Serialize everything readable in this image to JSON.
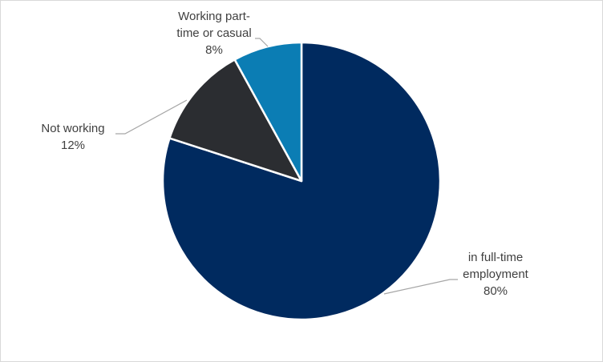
{
  "chart_data": {
    "type": "pie",
    "title": "",
    "slices": [
      {
        "label": "in full-time employment",
        "label_lines": [
          "in full-time",
          "employment"
        ],
        "value": 80,
        "value_label": "80%",
        "color": "#002a5f"
      },
      {
        "label": "Not working",
        "label_lines": [
          "Not working"
        ],
        "value": 12,
        "value_label": "12%",
        "color": "#2b2d31"
      },
      {
        "label": "Working part-time or casual",
        "label_lines": [
          "Working part-",
          "time or casual"
        ],
        "value": 8,
        "value_label": "8%",
        "color": "#0b7db4"
      }
    ],
    "start_angle_deg": 0,
    "direction": "clockwise",
    "legend": "none",
    "data_labels": "outside-with-leader-lines"
  }
}
